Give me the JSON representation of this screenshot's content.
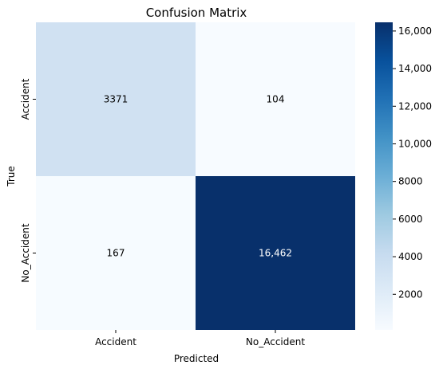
{
  "chart_data": {
    "type": "heatmap",
    "title": "Confusion Matrix",
    "xlabel": "Predicted",
    "ylabel": "True",
    "x_categories": [
      "Accident",
      "No_Accident"
    ],
    "y_categories": [
      "Accident",
      "No_Accident"
    ],
    "values": [
      [
        3371,
        104
      ],
      [
        167,
        16462
      ]
    ],
    "cell_labels": [
      [
        "3371",
        "104"
      ],
      [
        "167",
        "16,462"
      ]
    ],
    "colormap": "Blues",
    "color_range": [
      104,
      16462
    ],
    "colorbar_ticks": [
      2000,
      4000,
      6000,
      8000,
      10000,
      12000,
      14000,
      16000
    ],
    "colorbar_tick_labels": [
      "2000",
      "4000",
      "6000",
      "8000",
      "10,000",
      "12,000",
      "14,000",
      "16,000"
    ]
  }
}
